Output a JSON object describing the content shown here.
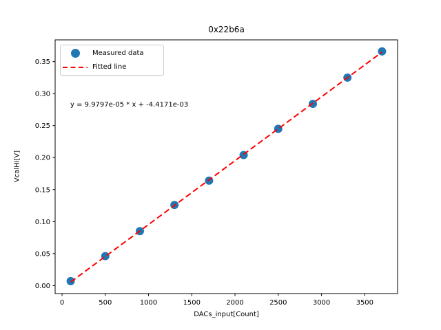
{
  "chart_data": {
    "type": "scatter",
    "title": "0x22b6a",
    "xlabel": "DACs_input[Count]",
    "ylabel": "VcalHi[V]",
    "xlim": [
      -80,
      3880
    ],
    "ylim": [
      -0.0125,
      0.384
    ],
    "grid": false,
    "legend_position": "upper left",
    "xticks": {
      "values": [
        0,
        500,
        1000,
        1500,
        2000,
        2500,
        3000,
        3500
      ],
      "labels": [
        "0",
        "500",
        "1000",
        "1500",
        "2000",
        "2500",
        "3000",
        "3500"
      ]
    },
    "yticks": {
      "values": [
        0.0,
        0.05,
        0.1,
        0.15,
        0.2,
        0.25,
        0.3,
        0.35
      ],
      "labels": [
        "0.00",
        "0.05",
        "0.10",
        "0.15",
        "0.20",
        "0.25",
        "0.30",
        "0.35"
      ]
    },
    "series": [
      {
        "name": "Measured data",
        "type": "scatter",
        "marker": "circle",
        "color": "#1f77b4",
        "x": [
          100,
          500,
          900,
          1300,
          1700,
          2100,
          2500,
          2900,
          3300,
          3700
        ],
        "y": [
          0.007,
          0.046,
          0.085,
          0.126,
          0.164,
          0.204,
          0.245,
          0.284,
          0.325,
          0.366
        ]
      },
      {
        "name": "Fitted line",
        "type": "line",
        "style": "dashed",
        "color": "#ff0000",
        "slope": 9.9797e-05,
        "intercept": -0.0044171,
        "x": [
          100,
          3700
        ],
        "y": [
          0.0055626,
          0.3648318
        ]
      }
    ],
    "annotation": {
      "text": "y = 9.9797e-05 * x + -4.4171e-03",
      "x": 100,
      "y": 0.28
    },
    "axis_color": "#000000",
    "legend_border_color": "#cccccc"
  }
}
